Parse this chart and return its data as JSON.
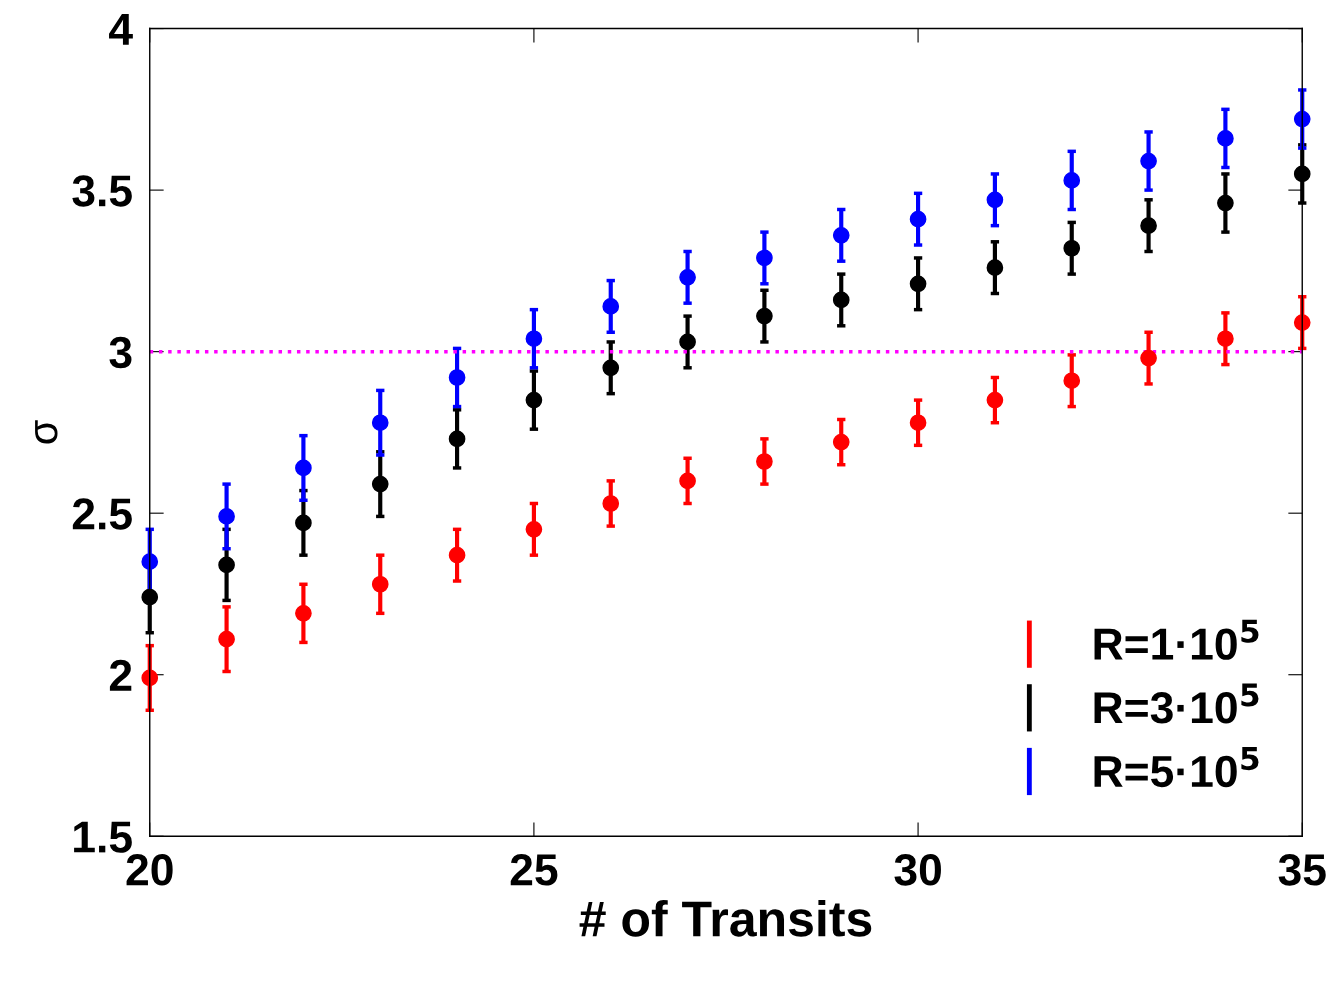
{
  "chart_data": {
    "type": "scatter",
    "xlabel": "# of Transits",
    "ylabel": "σ",
    "x": [
      20,
      21,
      22,
      23,
      24,
      25,
      26,
      27,
      28,
      29,
      30,
      31,
      32,
      33,
      34,
      35
    ],
    "series": [
      {
        "name": "R=1·10$^{5}$",
        "color": "#ff0000",
        "values": [
          1.99,
          2.11,
          2.19,
          2.28,
          2.37,
          2.45,
          2.53,
          2.6,
          2.66,
          2.72,
          2.78,
          2.85,
          2.91,
          2.98,
          3.04,
          3.09
        ],
        "errors": [
          0.1,
          0.1,
          0.09,
          0.09,
          0.08,
          0.08,
          0.07,
          0.07,
          0.07,
          0.07,
          0.07,
          0.07,
          0.08,
          0.08,
          0.08,
          0.08
        ]
      },
      {
        "name": "R=3·10$^{5}$",
        "color": "#000000",
        "values": [
          2.24,
          2.34,
          2.47,
          2.59,
          2.73,
          2.85,
          2.95,
          3.03,
          3.11,
          3.16,
          3.21,
          3.26,
          3.32,
          3.39,
          3.46,
          3.55
        ],
        "errors": [
          0.11,
          0.11,
          0.1,
          0.1,
          0.09,
          0.09,
          0.08,
          0.08,
          0.08,
          0.08,
          0.08,
          0.08,
          0.08,
          0.08,
          0.09,
          0.09
        ]
      },
      {
        "name": "R=5·10$^{5}$",
        "color": "#0000ff",
        "values": [
          2.35,
          2.49,
          2.64,
          2.78,
          2.92,
          3.04,
          3.14,
          3.23,
          3.29,
          3.36,
          3.41,
          3.47,
          3.53,
          3.59,
          3.66,
          3.72
        ],
        "errors": [
          0.1,
          0.1,
          0.1,
          0.1,
          0.09,
          0.09,
          0.08,
          0.08,
          0.08,
          0.08,
          0.08,
          0.08,
          0.09,
          0.09,
          0.09,
          0.09
        ]
      }
    ],
    "xlim": [
      20,
      35
    ],
    "xticks": [
      20,
      25,
      30,
      35
    ],
    "ylim": [
      1.5,
      4
    ],
    "yticks": [
      1.5,
      2,
      2.5,
      3,
      3.5,
      4
    ],
    "ref_lines": [
      {
        "axis": "y",
        "value": 3,
        "color": "#ff00ff",
        "line_style": "dotted"
      }
    ],
    "marker": "circle",
    "legend": "bottom right",
    "grid": false
  }
}
